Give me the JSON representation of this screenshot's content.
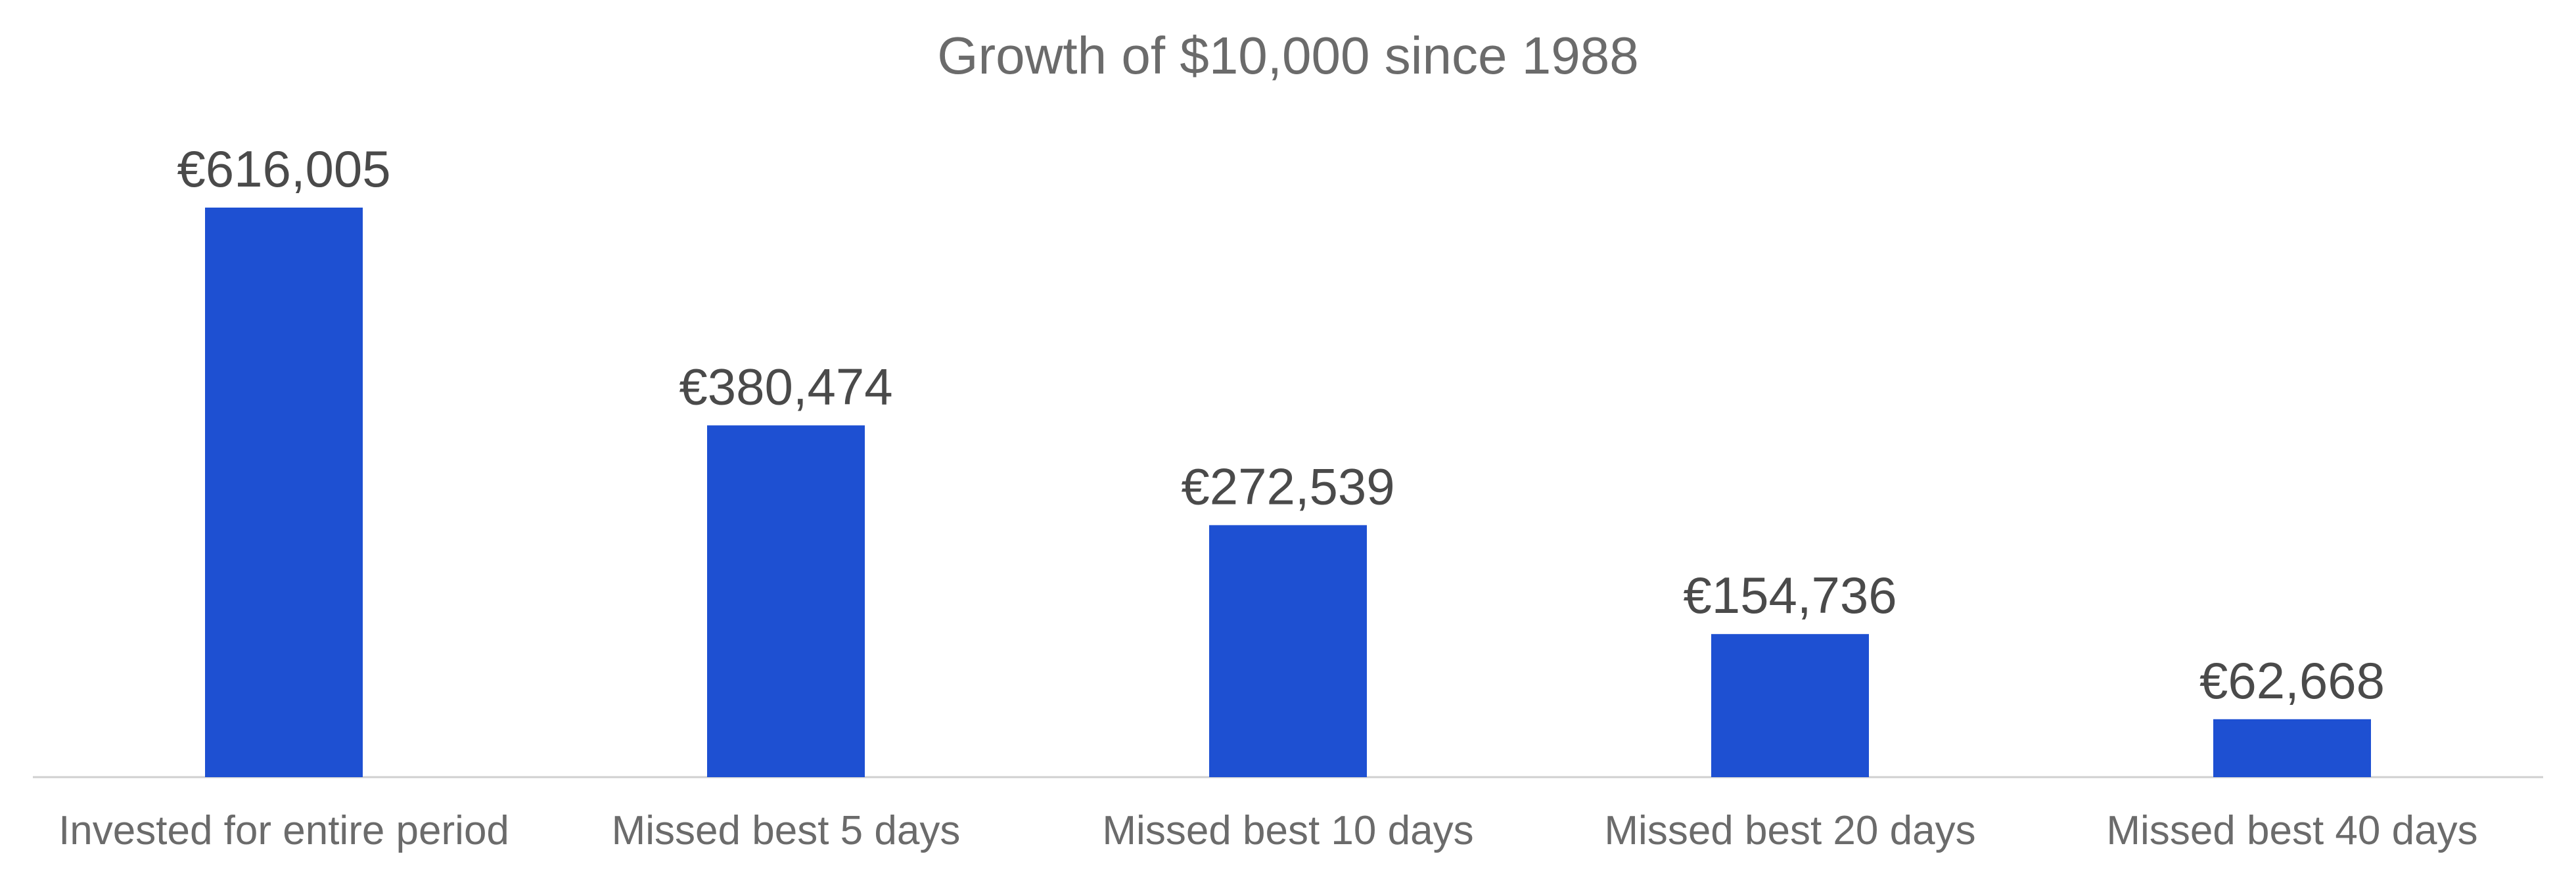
{
  "chart_data": {
    "type": "bar",
    "title": "Growth of $10,000 since 1988",
    "xlabel": "",
    "ylabel": "",
    "ylim": [
      0,
      616005
    ],
    "grid": false,
    "legend": "none",
    "categories": [
      "Invested for entire period",
      "Missed best 5 days",
      "Missed best 10 days",
      "Missed best 20 days",
      "Missed best 40 days"
    ],
    "values": [
      616005,
      380474,
      272539,
      154736,
      62668
    ],
    "value_labels": [
      "€616,005",
      "€380,474",
      "€272,539",
      "€154,736",
      "€62,668"
    ],
    "colors": {
      "bar": "#1e50d2",
      "axis": "#d0d0d0"
    }
  }
}
